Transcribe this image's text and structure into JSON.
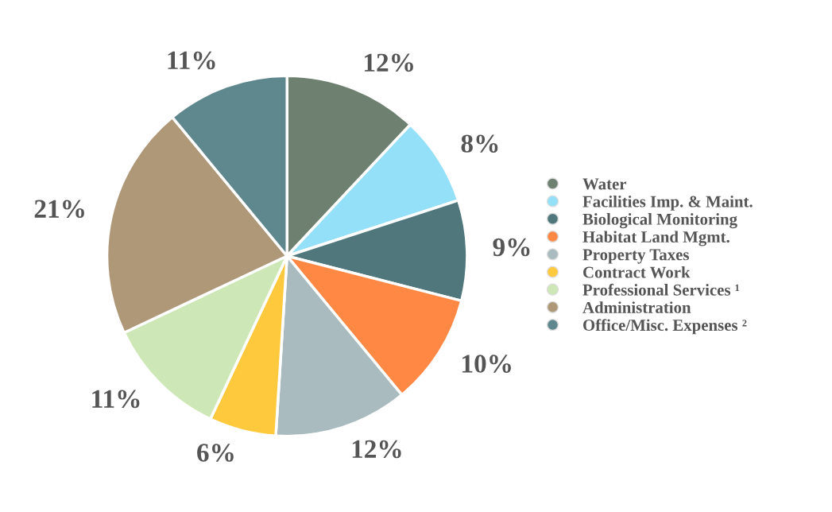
{
  "chart_data": {
    "type": "pie",
    "categories": [
      "Water",
      "Facilities Imp. & Maint.",
      "Biological Monitoring",
      "Habitat Land Mgmt.",
      "Property Taxes",
      "Contract Work",
      "Professional Services ¹",
      "Administration",
      "Office/Misc. Expenses ²"
    ],
    "values": [
      12,
      8,
      9,
      10,
      12,
      6,
      11,
      21,
      11
    ],
    "value_labels": [
      "12%",
      "8%",
      "9%",
      "10%",
      "12%",
      "6%",
      "11%",
      "21%",
      "11%"
    ],
    "colors": [
      "#6e8070",
      "#94e0f8",
      "#4f777c",
      "#ff8845",
      "#a9bbbf",
      "#ffc93e",
      "#cde8b6",
      "#ae9878",
      "#5e888e"
    ],
    "legend": "right"
  }
}
